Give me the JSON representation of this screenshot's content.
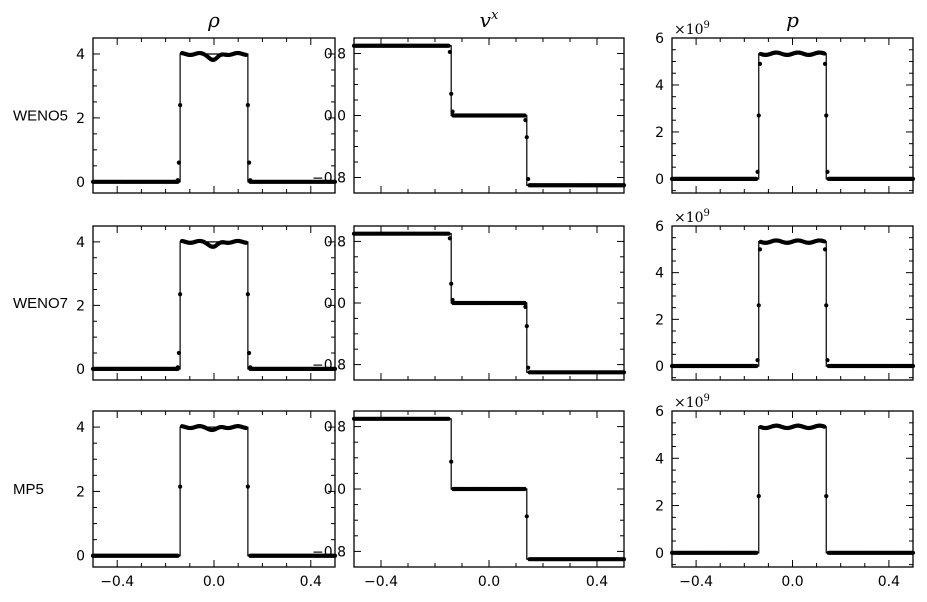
{
  "chart_data": {
    "type": "line",
    "layout": "3x3 grid; columns share x axis",
    "column_titles": [
      "ρ",
      "v",
      "p"
    ],
    "column_title_superscripts": [
      "",
      "x",
      ""
    ],
    "row_labels": [
      "WENO5",
      "WENO7",
      "MP5"
    ],
    "xlim": [
      -0.5,
      0.5
    ],
    "xticks": [
      -0.4,
      0.0,
      0.4
    ],
    "xtick_labels": [
      "−0.4",
      "0.0",
      "0.4"
    ],
    "columns": [
      {
        "variable": "rho",
        "ylim": [
          -0.35,
          4.5
        ],
        "yticks": [
          0,
          2,
          4
        ],
        "ytick_labels": [
          "0",
          "2",
          "4"
        ],
        "exact": {
          "x": [
            -0.5,
            -0.14,
            -0.14,
            0.14,
            0.14,
            0.5
          ],
          "y": [
            0,
            0,
            4,
            4,
            0,
            0
          ]
        },
        "plateau": 4.0,
        "outer": 0.0
      },
      {
        "variable": "vx",
        "ylim": [
          -1.0,
          1.0
        ],
        "yticks": [
          -0.8,
          0.0,
          0.8
        ],
        "ytick_labels": [
          "−0.8",
          "0.0",
          "0.8"
        ],
        "exact": {
          "x": [
            -0.5,
            -0.14,
            -0.14,
            0.14,
            0.14,
            0.5
          ],
          "y": [
            0.9,
            0.9,
            0,
            0,
            -0.9,
            -0.9
          ]
        },
        "plateau": 0.0,
        "outer": 0.9
      },
      {
        "variable": "p",
        "ylim": [
          -0.6,
          6.0
        ],
        "yticks": [
          0,
          2,
          4,
          6
        ],
        "ytick_labels": [
          "0",
          "2",
          "4",
          "6"
        ],
        "multiplier": "×10",
        "multiplier_exp": "9",
        "exact": {
          "x": [
            -0.5,
            -0.14,
            -0.14,
            0.14,
            0.14,
            0.5
          ],
          "y": [
            0,
            0,
            5.33,
            5.33,
            0,
            0
          ]
        },
        "plateau": 5.33,
        "outer": 0.0
      }
    ],
    "numerical": [
      {
        "rho": {
          "left_tail": [
            [
              -0.15,
              0.05
            ],
            [
              -0.145,
              0.6
            ]
          ],
          "left_mid": [
            [
              -0.14,
              2.4
            ]
          ],
          "plateau_dip": 3.82,
          "right_mid": [
            [
              0.14,
              2.4
            ]
          ],
          "right_tail": [
            [
              0.145,
              0.6
            ],
            [
              0.15,
              0.05
            ]
          ]
        },
        "vx": {
          "left": [
            [
              -0.145,
              0.82
            ],
            [
              -0.14,
              0.28
            ],
            [
              -0.135,
              0.05
            ]
          ],
          "right": [
            [
              0.135,
              -0.06
            ],
            [
              0.14,
              -0.28
            ],
            [
              0.145,
              -0.82
            ]
          ]
        },
        "p": {
          "left": [
            [
              -0.145,
              0.3
            ],
            [
              -0.14,
              2.7
            ],
            [
              -0.135,
              4.9
            ]
          ],
          "right": [
            [
              0.135,
              4.9
            ],
            [
              0.14,
              2.7
            ],
            [
              0.145,
              0.3
            ]
          ]
        }
      },
      {
        "rho": {
          "left_tail": [
            [
              -0.15,
              0.05
            ],
            [
              -0.145,
              0.5
            ]
          ],
          "left_mid": [
            [
              -0.14,
              2.35
            ]
          ],
          "plateau_dip": 3.85,
          "right_mid": [
            [
              0.14,
              2.35
            ]
          ],
          "right_tail": [
            [
              0.145,
              0.5
            ],
            [
              0.15,
              0.05
            ]
          ]
        },
        "vx": {
          "left": [
            [
              -0.145,
              0.84
            ],
            [
              -0.14,
              0.25
            ],
            [
              -0.135,
              0.04
            ]
          ],
          "right": [
            [
              0.135,
              -0.05
            ],
            [
              0.14,
              -0.3
            ],
            [
              0.145,
              -0.84
            ]
          ]
        },
        "p": {
          "left": [
            [
              -0.145,
              0.25
            ],
            [
              -0.14,
              2.6
            ],
            [
              -0.135,
              5.0
            ]
          ],
          "right": [
            [
              0.135,
              5.0
            ],
            [
              0.14,
              2.6
            ],
            [
              0.145,
              0.25
            ]
          ]
        }
      },
      {
        "rho": {
          "left_tail": [],
          "left_mid": [
            [
              -0.14,
              2.15
            ]
          ],
          "plateau_dip": 3.92,
          "right_mid": [
            [
              0.14,
              2.15
            ]
          ],
          "right_tail": []
        },
        "vx": {
          "left": [
            [
              -0.14,
              0.35
            ]
          ],
          "right": [
            [
              0.14,
              -0.35
            ]
          ]
        },
        "p": {
          "left": [
            [
              -0.14,
              2.4
            ]
          ],
          "right": [
            [
              0.14,
              2.4
            ]
          ]
        }
      }
    ]
  }
}
